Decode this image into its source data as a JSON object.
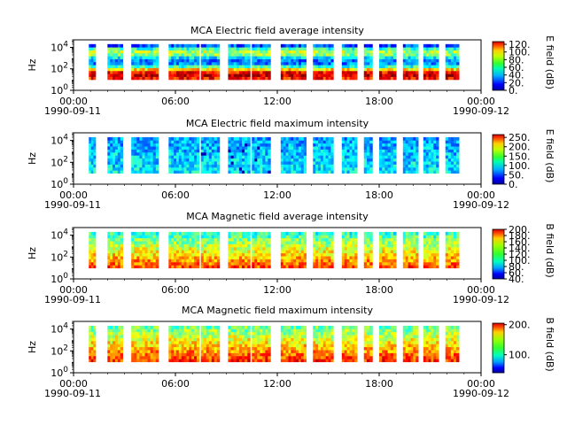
{
  "x_ticks": {
    "labels": [
      "00:00",
      "06:00",
      "12:00",
      "18:00"
    ],
    "hours": [
      0,
      6,
      12,
      18
    ],
    "start_date": "1990-09-11",
    "end_date": "1990-09-12",
    "end_hour": 24,
    "minor_step_hours": 1
  },
  "chart_data": [
    {
      "type": "heatmap",
      "title": "MCA  Electric field average intensity",
      "ylabel": "Hz",
      "colorbar_label": "E field (dB)",
      "y_scale": "log",
      "y_ticks": [
        "10^0",
        "10^2",
        "10^4"
      ],
      "x_range_hours": [
        0,
        24
      ],
      "colorbar_range": [
        0,
        127
      ],
      "colorbar_ticks": [
        "0.",
        "20.",
        "40.",
        "60.",
        "80.",
        "100.",
        "120."
      ],
      "colorbar_values": [
        0,
        20,
        40,
        60,
        80,
        100,
        120
      ],
      "data_segments_hours": [
        [
          0.9,
          1.3
        ],
        [
          2.0,
          2.9
        ],
        [
          3.4,
          5.0
        ],
        [
          5.6,
          7.4
        ],
        [
          7.5,
          8.6
        ],
        [
          9.1,
          10.4
        ],
        [
          10.5,
          11.6
        ],
        [
          12.2,
          13.7
        ],
        [
          14.1,
          15.3
        ],
        [
          15.8,
          16.7
        ],
        [
          17.1,
          17.6
        ],
        [
          18.0,
          19.0
        ],
        [
          19.4,
          20.3
        ],
        [
          20.6,
          21.5
        ],
        [
          21.9,
          22.7
        ]
      ],
      "freq_range_hz": [
        10,
        20000
      ]
    },
    {
      "type": "heatmap",
      "title": "MCA  Electric field maximum intensity",
      "ylabel": "Hz",
      "colorbar_label": "E field (dB)",
      "y_scale": "log",
      "y_ticks": [
        "10^0",
        "10^2",
        "10^4"
      ],
      "x_range_hours": [
        0,
        24
      ],
      "colorbar_range": [
        0,
        265
      ],
      "colorbar_ticks": [
        "0.",
        "50.",
        "100.",
        "150.",
        "200.",
        "250."
      ],
      "colorbar_values": [
        0,
        50,
        100,
        150,
        200,
        250
      ],
      "data_segments_hours": [
        [
          0.9,
          1.3
        ],
        [
          2.0,
          2.9
        ],
        [
          3.4,
          5.0
        ],
        [
          5.6,
          7.4
        ],
        [
          7.5,
          8.6
        ],
        [
          9.1,
          10.4
        ],
        [
          10.5,
          11.6
        ],
        [
          12.2,
          13.7
        ],
        [
          14.1,
          15.3
        ],
        [
          15.8,
          16.7
        ],
        [
          17.1,
          17.6
        ],
        [
          18.0,
          19.0
        ],
        [
          19.4,
          20.3
        ],
        [
          20.6,
          21.5
        ],
        [
          21.9,
          22.7
        ]
      ],
      "freq_range_hz": [
        10,
        20000
      ]
    },
    {
      "type": "heatmap",
      "title": "MCA  Magnetic field average intensity",
      "ylabel": "Hz",
      "colorbar_label": "B field (dB)",
      "y_scale": "log",
      "y_ticks": [
        "10^0",
        "10^2",
        "10^4"
      ],
      "x_range_hours": [
        0,
        24
      ],
      "colorbar_range": [
        40,
        200
      ],
      "colorbar_ticks": [
        "40.",
        "60.",
        "80.",
        "100.",
        "120.",
        "140.",
        "160.",
        "180.",
        "200."
      ],
      "colorbar_values": [
        40,
        60,
        80,
        100,
        120,
        140,
        160,
        180,
        200
      ],
      "data_segments_hours": [
        [
          0.9,
          1.3
        ],
        [
          2.0,
          2.9
        ],
        [
          3.4,
          5.0
        ],
        [
          5.6,
          7.4
        ],
        [
          7.5,
          8.6
        ],
        [
          9.1,
          10.4
        ],
        [
          10.5,
          11.6
        ],
        [
          12.2,
          13.7
        ],
        [
          14.1,
          15.3
        ],
        [
          15.8,
          16.7
        ],
        [
          17.1,
          17.6
        ],
        [
          18.0,
          19.0
        ],
        [
          19.4,
          20.3
        ],
        [
          20.6,
          21.5
        ],
        [
          21.9,
          22.7
        ]
      ],
      "freq_range_hz": [
        10,
        20000
      ]
    },
    {
      "type": "heatmap",
      "title": "MCA  Magnetic field maximum intensity",
      "ylabel": "Hz",
      "colorbar_label": "B field (dB)",
      "y_scale": "log",
      "y_ticks": [
        "10^0",
        "10^2",
        "10^4"
      ],
      "x_range_hours": [
        0,
        24
      ],
      "colorbar_range": [
        40,
        205
      ],
      "colorbar_ticks": [
        "100.",
        "200."
      ],
      "colorbar_values": [
        100,
        200
      ],
      "data_segments_hours": [
        [
          0.9,
          1.3
        ],
        [
          2.0,
          2.9
        ],
        [
          3.4,
          5.0
        ],
        [
          5.6,
          7.4
        ],
        [
          7.5,
          8.6
        ],
        [
          9.1,
          10.4
        ],
        [
          10.5,
          11.6
        ],
        [
          12.2,
          13.7
        ],
        [
          14.1,
          15.3
        ],
        [
          15.8,
          16.7
        ],
        [
          17.1,
          17.6
        ],
        [
          18.0,
          19.0
        ],
        [
          19.4,
          20.3
        ],
        [
          20.6,
          21.5
        ],
        [
          21.9,
          22.7
        ]
      ],
      "freq_range_hz": [
        10,
        20000
      ]
    }
  ]
}
